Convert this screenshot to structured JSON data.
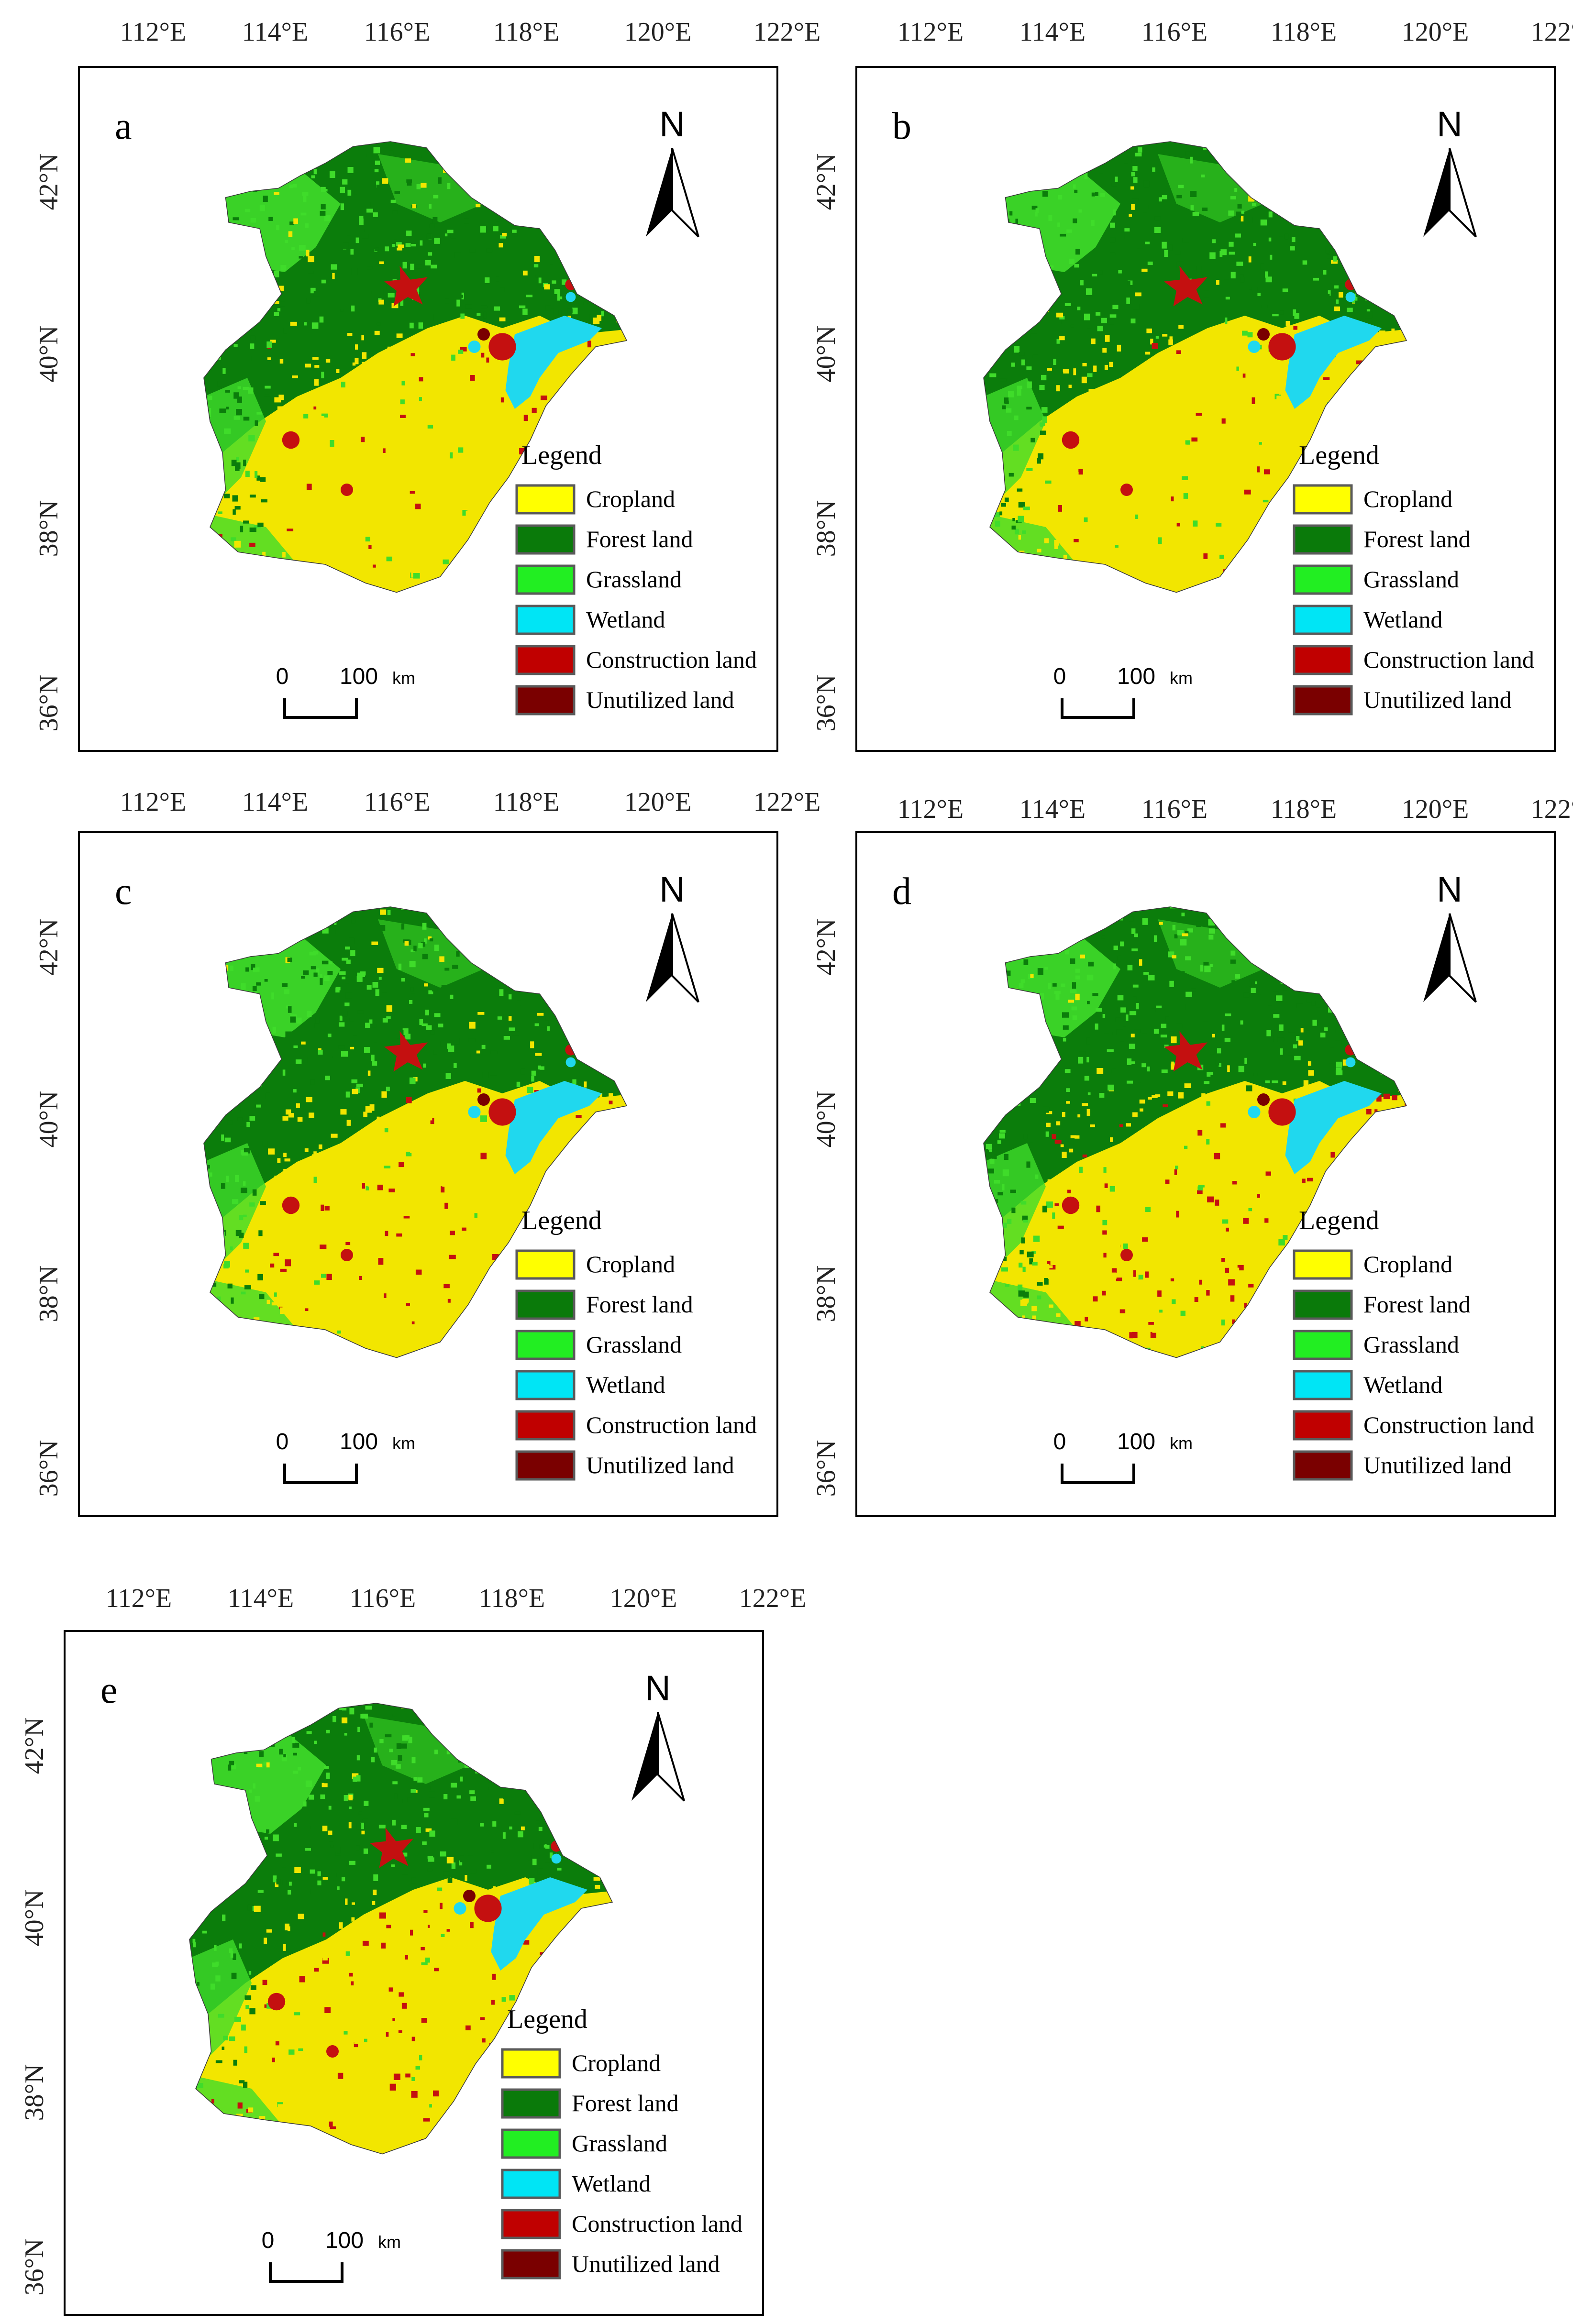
{
  "figure": {
    "longitude_labels": [
      "112°E",
      "114°E",
      "116°E",
      "118°E",
      "120°E",
      "122°E"
    ],
    "latitude_labels": [
      "42°N",
      "40°N",
      "38°N",
      "36°N"
    ],
    "north_label": "N",
    "legend_title": "Legend",
    "legend_items": [
      {
        "label": "Cropland",
        "color": "#ffff00"
      },
      {
        "label": "Forest land",
        "color": "#0a7a0a"
      },
      {
        "label": "Grassland",
        "color": "#22ee22"
      },
      {
        "label": "Wetland",
        "color": "#00e5f5"
      },
      {
        "label": "Construction land",
        "color": "#c00000"
      },
      {
        "label": "Unutilized land",
        "color": "#7a0000"
      }
    ],
    "scale_bar": {
      "start": "0",
      "end": "100",
      "unit": "km"
    },
    "panels": [
      {
        "letter": "a"
      },
      {
        "letter": "b"
      },
      {
        "letter": "c"
      },
      {
        "letter": "d"
      },
      {
        "letter": "e"
      }
    ],
    "map_colors": {
      "cropland": "#f2e600",
      "forest": "#0b7d0b",
      "grassland": "#3fdc2a",
      "wetland": "#20d8ee",
      "construction": "#c41010",
      "unutilized": "#7a0000"
    }
  }
}
